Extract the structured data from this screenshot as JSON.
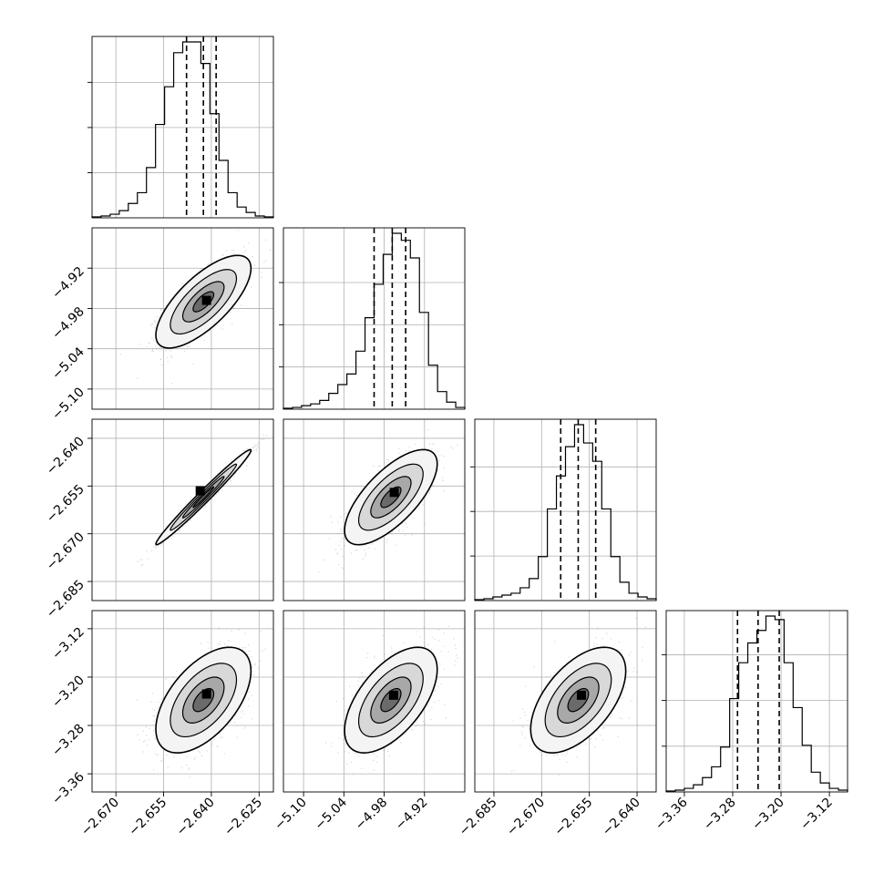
{
  "chart_data": {
    "type": "corner",
    "title": "",
    "grid": true,
    "colors": {
      "line": "#000000",
      "grid": "#b0b0b0",
      "scatter": "#8c8c8c"
    },
    "parameters": [
      {
        "label": "",
        "range": [
          -2.6775,
          -2.6205
        ],
        "ticks": [
          "−2.670",
          "−2.655",
          "−2.640",
          "−2.625"
        ],
        "tick_values": [
          -2.67,
          -2.655,
          -2.64,
          -2.625
        ],
        "median": -2.6425,
        "q16": -2.6478,
        "q84": -2.6385
      },
      {
        "label": "",
        "range": [
          -5.13,
          -4.86
        ],
        "ticks": [
          "−5.10",
          "−5.04",
          "−4.98",
          "−4.92"
        ],
        "tick_values": [
          -5.1,
          -5.04,
          -4.98,
          -4.92
        ],
        "median": -4.968,
        "q16": -4.995,
        "q84": -4.948
      },
      {
        "label": "",
        "range": [
          -2.691,
          -2.634
        ],
        "ticks": [
          "−2.685",
          "−2.670",
          "−2.655",
          "−2.640"
        ],
        "tick_values": [
          -2.685,
          -2.67,
          -2.655,
          -2.64
        ],
        "median": -2.6585,
        "q16": -2.664,
        "q84": -2.653
      },
      {
        "label": "",
        "range": [
          -3.39,
          -3.09
        ],
        "ticks": [
          "−3.36",
          "−3.28",
          "−3.20",
          "−3.12"
        ],
        "tick_values": [
          -3.36,
          -3.28,
          -3.2,
          -3.12
        ],
        "median": -3.238,
        "q16": -3.272,
        "q84": -3.203
      }
    ],
    "histograms": [
      {
        "counts": [
          0.5,
          1,
          2,
          4,
          8,
          14,
          28,
          52,
          73,
          92,
          98,
          98,
          86,
          58,
          32,
          14,
          6,
          3,
          1,
          0.5
        ],
        "max_tick_fraction": 0.77
      },
      {
        "counts": [
          0.5,
          1,
          2,
          3,
          5,
          9,
          14,
          20,
          33,
          52,
          71,
          88,
          100,
          96,
          86,
          55,
          25,
          10,
          4,
          1
        ],
        "max_tick_fraction": 0.72
      },
      {
        "counts": [
          0.5,
          1,
          2,
          3,
          4,
          7,
          12,
          24,
          50,
          68,
          84,
          96,
          86,
          76,
          50,
          24,
          10,
          4,
          2,
          1
        ],
        "max_tick_fraction": 0.76
      },
      {
        "counts": [
          0.5,
          1,
          2,
          4,
          8,
          14,
          25,
          52,
          72,
          83,
          90,
          98,
          96,
          72,
          47,
          26,
          11,
          5,
          2,
          1
        ],
        "max_tick_fraction": 0.78
      }
    ],
    "pairs": [
      {
        "row": 1,
        "col": 0,
        "mean": [
          -2.6425,
          -4.97
        ],
        "sd": [
          0.0065,
          0.03
        ],
        "rho": 0.72,
        "density_peak": [
          -2.6415,
          -4.968
        ]
      },
      {
        "row": 2,
        "col": 0,
        "mean": [
          -2.6425,
          -2.6585
        ],
        "sd": [
          0.0065,
          0.0065
        ],
        "rho": 0.985,
        "density_peak": [
          -2.6435,
          -2.6565
        ]
      },
      {
        "row": 2,
        "col": 1,
        "mean": [
          -4.97,
          -2.6585
        ],
        "sd": [
          0.03,
          0.0065
        ],
        "rho": 0.7,
        "density_peak": [
          -4.965,
          -2.657
        ]
      },
      {
        "row": 3,
        "col": 0,
        "mean": [
          -2.6425,
          -3.238
        ],
        "sd": [
          0.0065,
          0.038
        ],
        "rho": 0.55,
        "density_peak": [
          -2.6415,
          -3.228
        ]
      },
      {
        "row": 3,
        "col": 1,
        "mean": [
          -4.97,
          -3.238
        ],
        "sd": [
          0.03,
          0.038
        ],
        "rho": 0.58,
        "density_peak": [
          -4.966,
          -3.23
        ]
      },
      {
        "row": 3,
        "col": 2,
        "mean": [
          -2.6585,
          -3.238
        ],
        "sd": [
          0.0065,
          0.038
        ],
        "rho": 0.55,
        "density_peak": [
          -2.6575,
          -3.23
        ]
      }
    ]
  }
}
